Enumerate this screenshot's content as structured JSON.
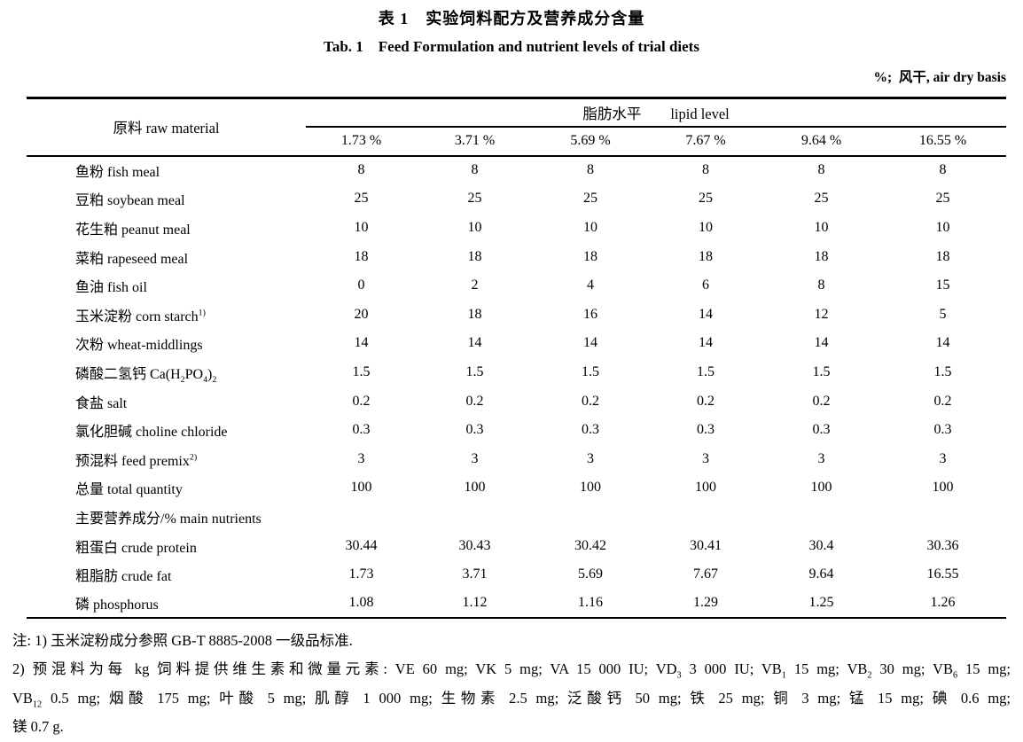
{
  "page": {
    "title_zh": "表 1　实验饲料配方及营养成分含量",
    "title_en": "Tab. 1    Feed Formulation and nutrient levels of trial diets",
    "unit_note": "%;  风干, air dry basis"
  },
  "table": {
    "corner_header": "原料 raw material",
    "span_header": "脂肪水平　　lipid level",
    "col_headers": [
      "1.73 %",
      "3.71 %",
      "5.69 %",
      "7.67 %",
      "9.64 %",
      "16.55 %"
    ],
    "rows": [
      {
        "label": "鱼粉 fish meal",
        "values": [
          "8",
          "8",
          "8",
          "8",
          "8",
          "8"
        ]
      },
      {
        "label": "豆粕 soybean meal",
        "values": [
          "25",
          "25",
          "25",
          "25",
          "25",
          "25"
        ]
      },
      {
        "label": "花生粕 peanut meal",
        "values": [
          "10",
          "10",
          "10",
          "10",
          "10",
          "10"
        ]
      },
      {
        "label": "菜粕 rapeseed meal",
        "values": [
          "18",
          "18",
          "18",
          "18",
          "18",
          "18"
        ]
      },
      {
        "label": "鱼油 fish oil",
        "values": [
          "0",
          "2",
          "4",
          "6",
          "8",
          "15"
        ]
      },
      {
        "label": "玉米淀粉 corn starch^{1)}",
        "values": [
          "20",
          "18",
          "16",
          "14",
          "12",
          "5"
        ]
      },
      {
        "label": "次粉 wheat-middlings",
        "values": [
          "14",
          "14",
          "14",
          "14",
          "14",
          "14"
        ]
      },
      {
        "label": "磷酸二氢钙 Ca(H_{2}PO_{4})_{2}",
        "values": [
          "1.5",
          "1.5",
          "1.5",
          "1.5",
          "1.5",
          "1.5"
        ]
      },
      {
        "label": "食盐 salt",
        "values": [
          "0.2",
          "0.2",
          "0.2",
          "0.2",
          "0.2",
          "0.2"
        ]
      },
      {
        "label": "氯化胆碱 choline chloride",
        "values": [
          "0.3",
          "0.3",
          "0.3",
          "0.3",
          "0.3",
          "0.3"
        ]
      },
      {
        "label": "预混料 feed premix^{2)}",
        "values": [
          "3",
          "3",
          "3",
          "3",
          "3",
          "3"
        ]
      },
      {
        "label": "总量 total quantity",
        "values": [
          "100",
          "100",
          "100",
          "100",
          "100",
          "100"
        ]
      },
      {
        "label": "主要营养成分/% main nutrients",
        "values": [
          "",
          "",
          "",
          "",
          "",
          ""
        ]
      },
      {
        "label": "粗蛋白 crude protein",
        "values": [
          "30.44",
          "30.43",
          "30.42",
          "30.41",
          "30.4",
          "30.36"
        ]
      },
      {
        "label": "粗脂肪 crude fat",
        "values": [
          "1.73",
          "3.71",
          "5.69",
          "7.67",
          "9.64",
          "16.55"
        ]
      },
      {
        "label": "磷 phosphorus",
        "values": [
          "1.08",
          "1.12",
          "1.16",
          "1.29",
          "1.25",
          "1.26"
        ]
      }
    ]
  },
  "notes": {
    "lines": [
      "注: 1) 玉米淀粉成分参照 GB-T 8885-2008 一级品标准.",
      "2) 预混料为每 kg 饲料提供维生素和微量元素: VE 60 mg; VK 5 mg; VA 15 000 IU; VD_{3} 3 000 IU; VB_{1} 15 mg; VB_{2} 30 mg; VB_{6} 15 mg;",
      "VB_{12} 0.5 mg; 烟酸 175 mg; 叶酸 5 mg; 肌醇 1 000 mg; 生物素 2.5 mg; 泛酸钙 50 mg; 铁 25 mg; 铜 3 mg; 锰 15 mg; 碘 0.6 mg;",
      "镁 0.7 g."
    ]
  }
}
